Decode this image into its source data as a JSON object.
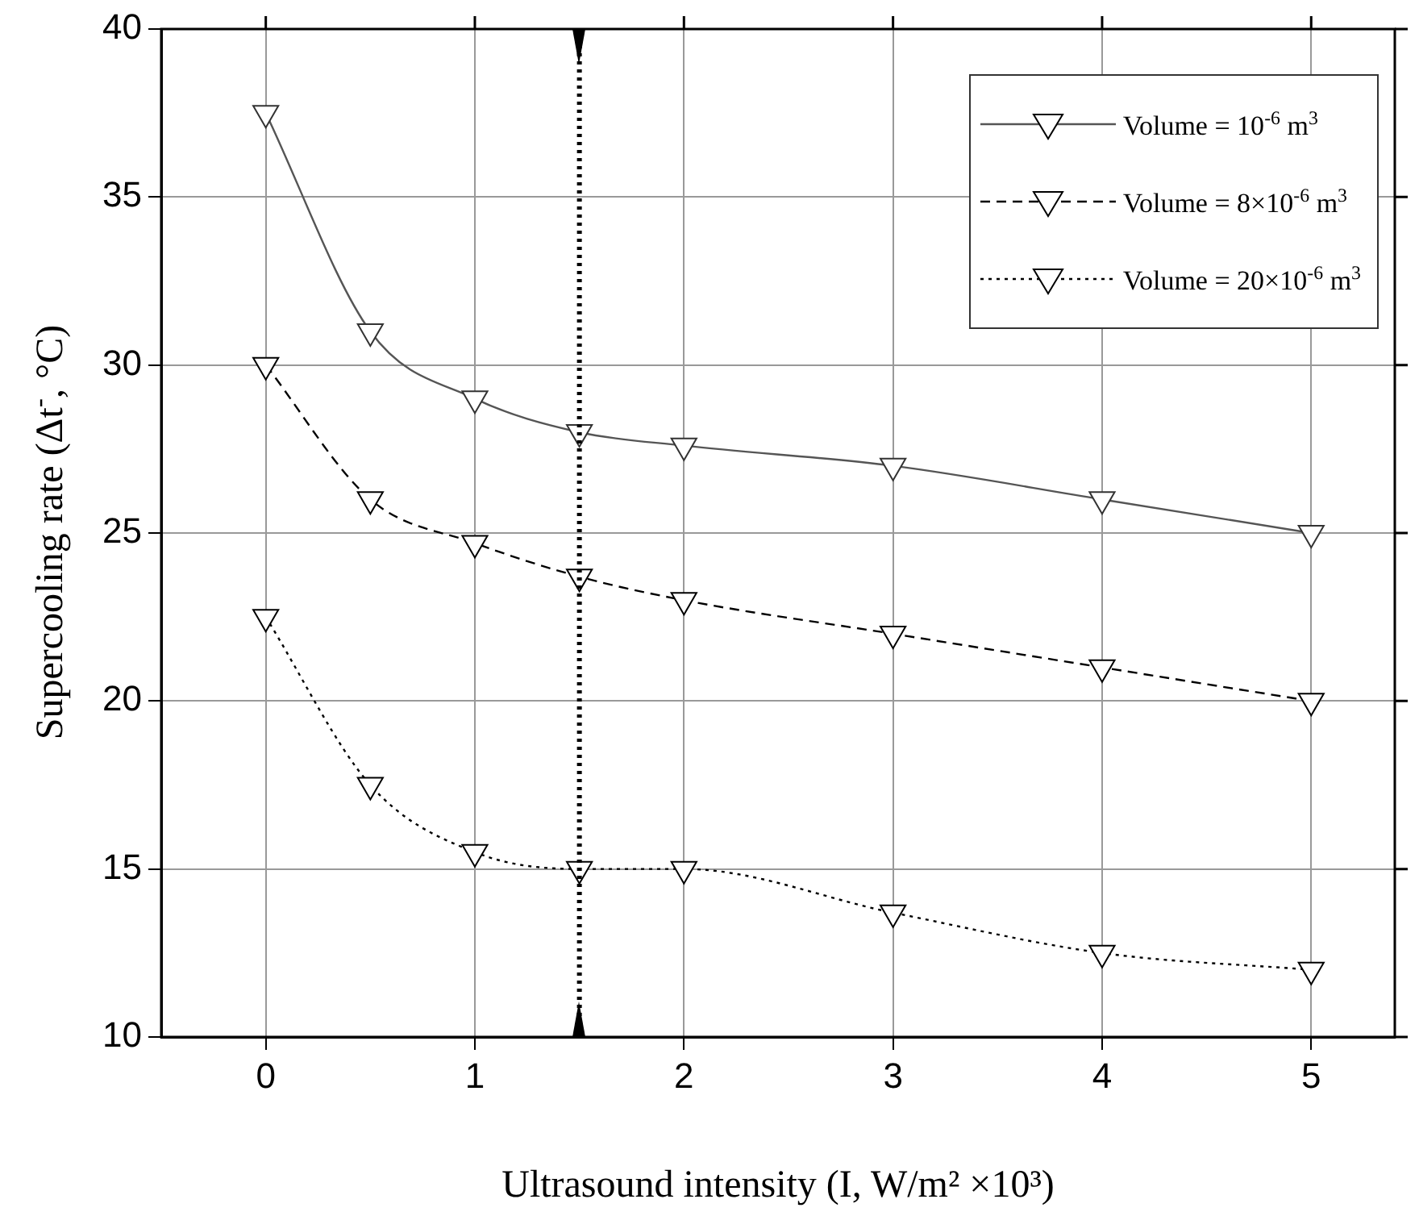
{
  "chart_data": {
    "type": "line",
    "xlabel": "Ultrasound intensity (I, W/m² ×10³)",
    "ylabel": "Supercooling rate (Δt$^{-}$, °C)",
    "xlim": [
      -0.5,
      5.4
    ],
    "xticks": [
      0,
      1,
      2,
      3,
      4,
      5
    ],
    "ylim": [
      10,
      40
    ],
    "yticks": [
      10,
      15,
      20,
      25,
      30,
      35,
      40
    ],
    "grid": true,
    "legend": "top right",
    "marker": "triangle",
    "x": [
      0,
      0.5,
      1,
      1.5,
      2,
      3,
      4,
      5
    ],
    "series": [
      {
        "name": "Volume = 10$^{-6}$ m$^{3}$",
        "color": "#555555",
        "line_style": "solid",
        "values": [
          37.5,
          31,
          29,
          28,
          27.6,
          27,
          26,
          25
        ]
      },
      {
        "name": "Volume = 8×10$^{-6}$ m$^{3}$",
        "color": "#000000",
        "line_style": "dashed",
        "values": [
          30,
          26,
          24.7,
          23.7,
          23,
          22,
          21,
          20
        ]
      },
      {
        "name": "Volume = 20×10$^{-6}$ m$^{3}$",
        "color": "#000000",
        "line_style": "dotted",
        "values": [
          22.5,
          17.5,
          15.5,
          15,
          15,
          13.7,
          12.5,
          12
        ]
      }
    ],
    "ref_lines": [
      {
        "axis": "x",
        "value": 1.5,
        "color": "#000000",
        "line_style": "dotted"
      }
    ]
  }
}
